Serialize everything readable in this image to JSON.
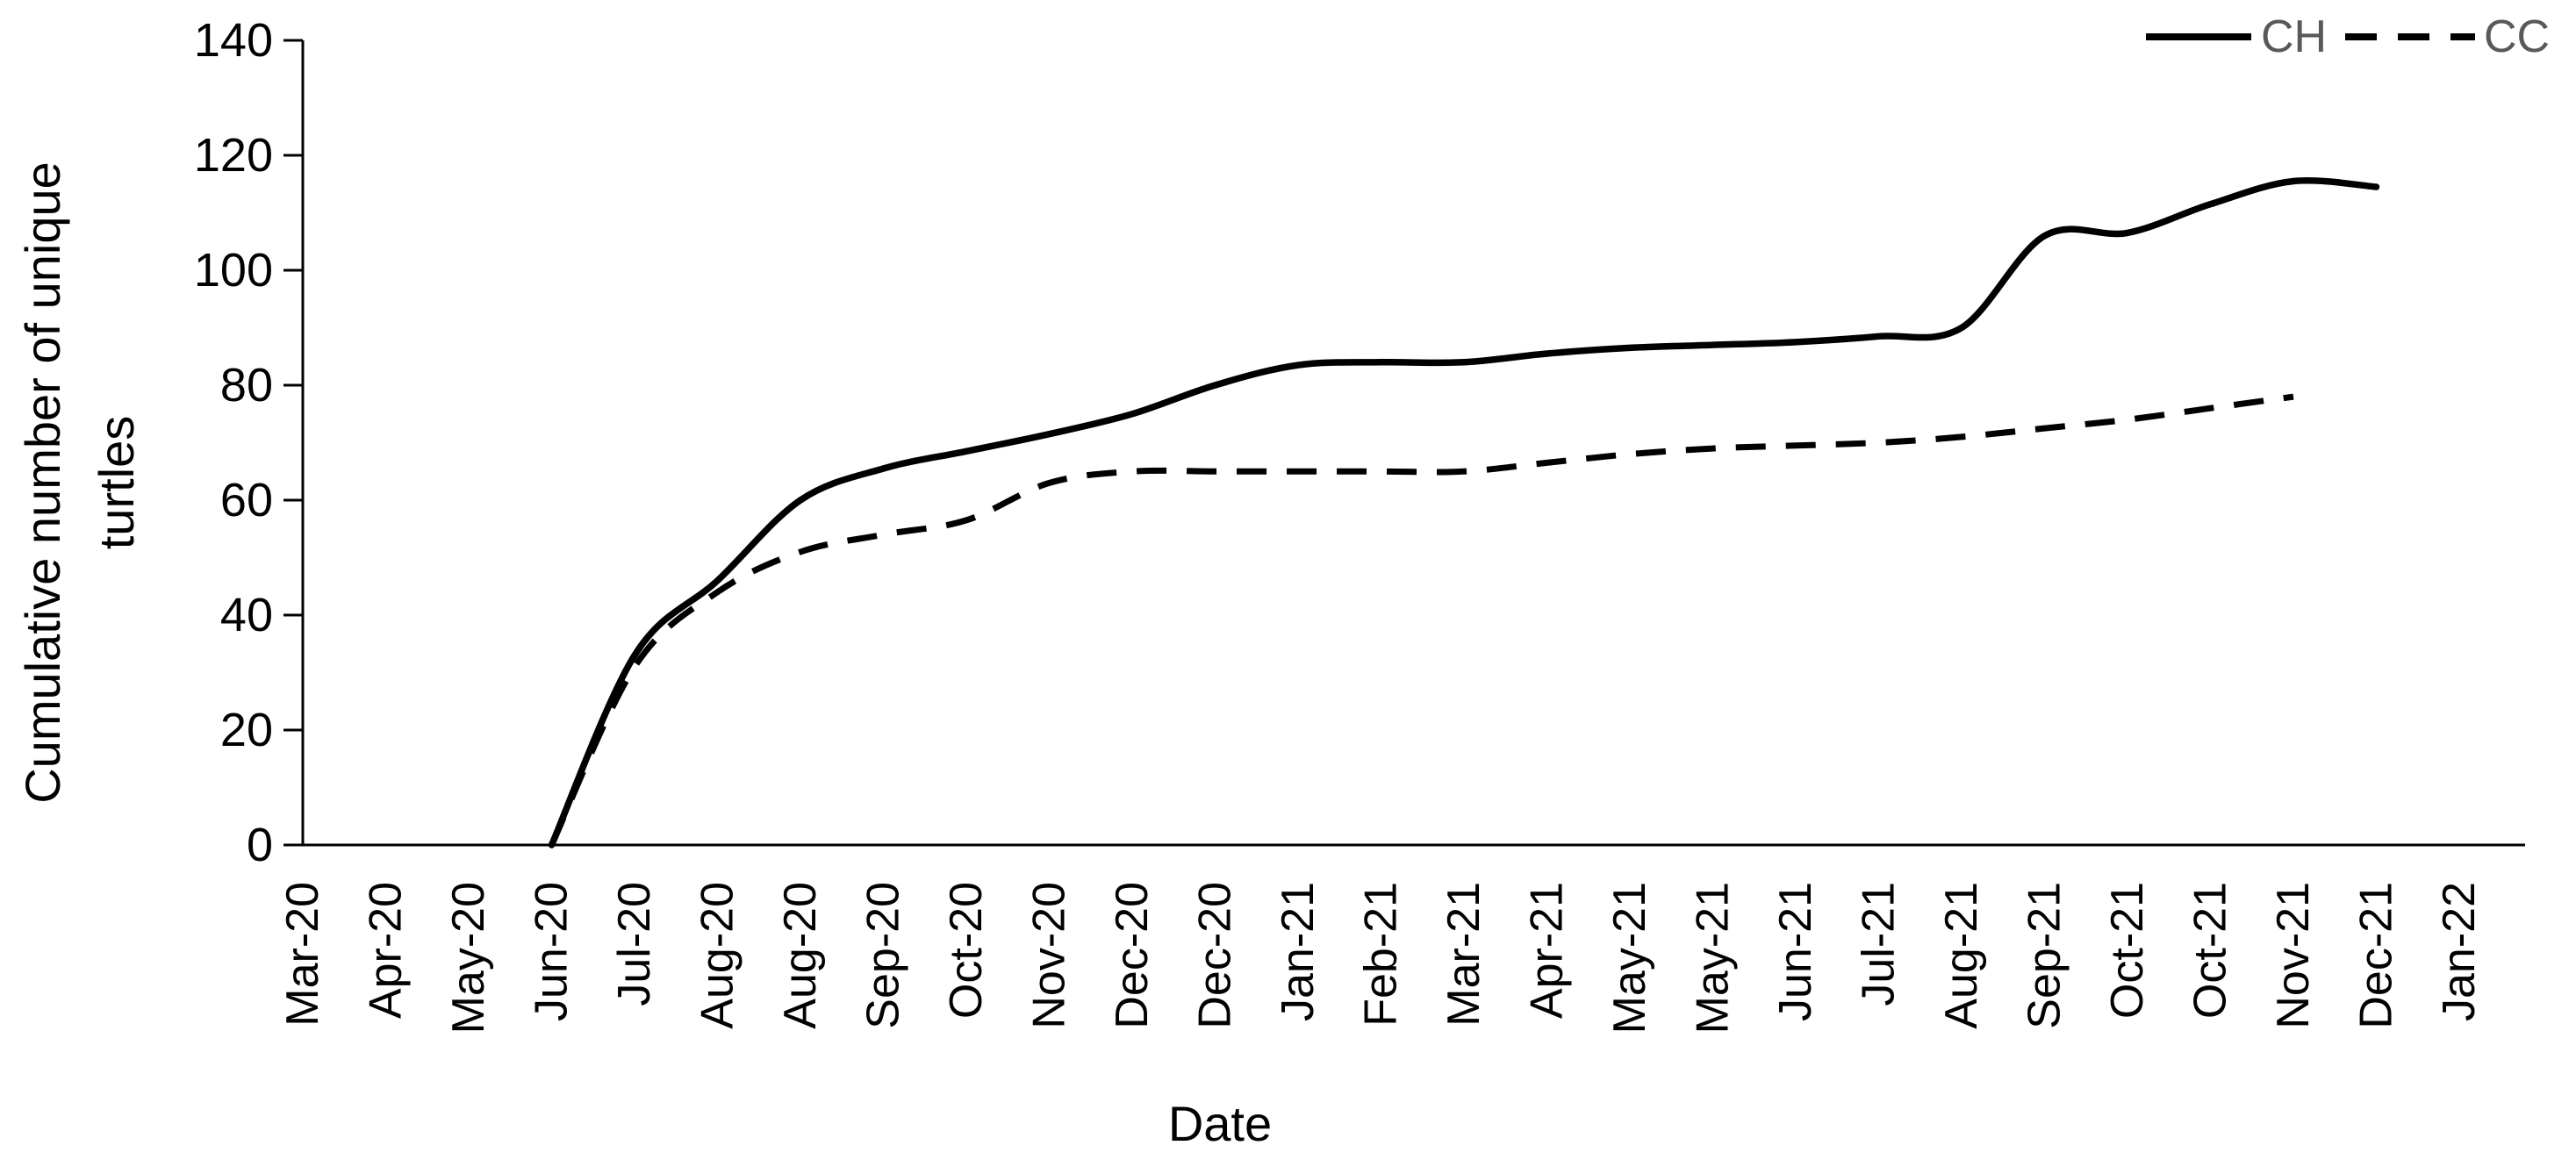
{
  "chart_data": {
    "type": "line",
    "title": "",
    "xlabel": "Date",
    "ylabel": "Cumulative number of unique turtles",
    "ylabel_lines": [
      "Cumulative number of unique",
      "turtles"
    ],
    "categories": [
      "Mar-20",
      "Apr-20",
      "May-20",
      "Jun-20",
      "Jul-20",
      "Aug-20",
      "Aug-20",
      "Sep-20",
      "Oct-20",
      "Nov-20",
      "Dec-20",
      "Dec-20",
      "Jan-21",
      "Feb-21",
      "Mar-21",
      "Apr-21",
      "May-21",
      "May-21",
      "Jun-21",
      "Jul-21",
      "Aug-21",
      "Sep-21",
      "Oct-21",
      "Oct-21",
      "Nov-21",
      "Dec-21",
      "Jan-22"
    ],
    "series": [
      {
        "name": "CH",
        "style": "solid",
        "color": "#000000",
        "values": [
          null,
          null,
          null,
          0,
          33,
          46,
          60,
          65.5,
          68.5,
          71.5,
          75,
          80,
          83.5,
          84,
          84,
          85.5,
          86.5,
          87,
          87.5,
          88.5,
          90,
          106,
          106.5,
          111.5,
          115.5,
          114.5,
          null
        ]
      },
      {
        "name": "CC",
        "style": "dashed",
        "color": "#000000",
        "values": [
          null,
          null,
          null,
          0,
          31,
          44,
          51,
          54,
          56.5,
          63,
          65,
          65,
          65,
          65,
          65,
          66.5,
          68,
          69,
          69.5,
          70,
          71,
          72.5,
          74,
          76,
          78,
          null,
          null
        ]
      }
    ],
    "ylim": [
      0,
      140
    ],
    "yticks": [
      0,
      20,
      40,
      60,
      80,
      100,
      120,
      140
    ],
    "grid": false,
    "legend_position": "top-right",
    "legend_text_color": "#595959",
    "axis_color": "#000000",
    "background": "#ffffff"
  }
}
